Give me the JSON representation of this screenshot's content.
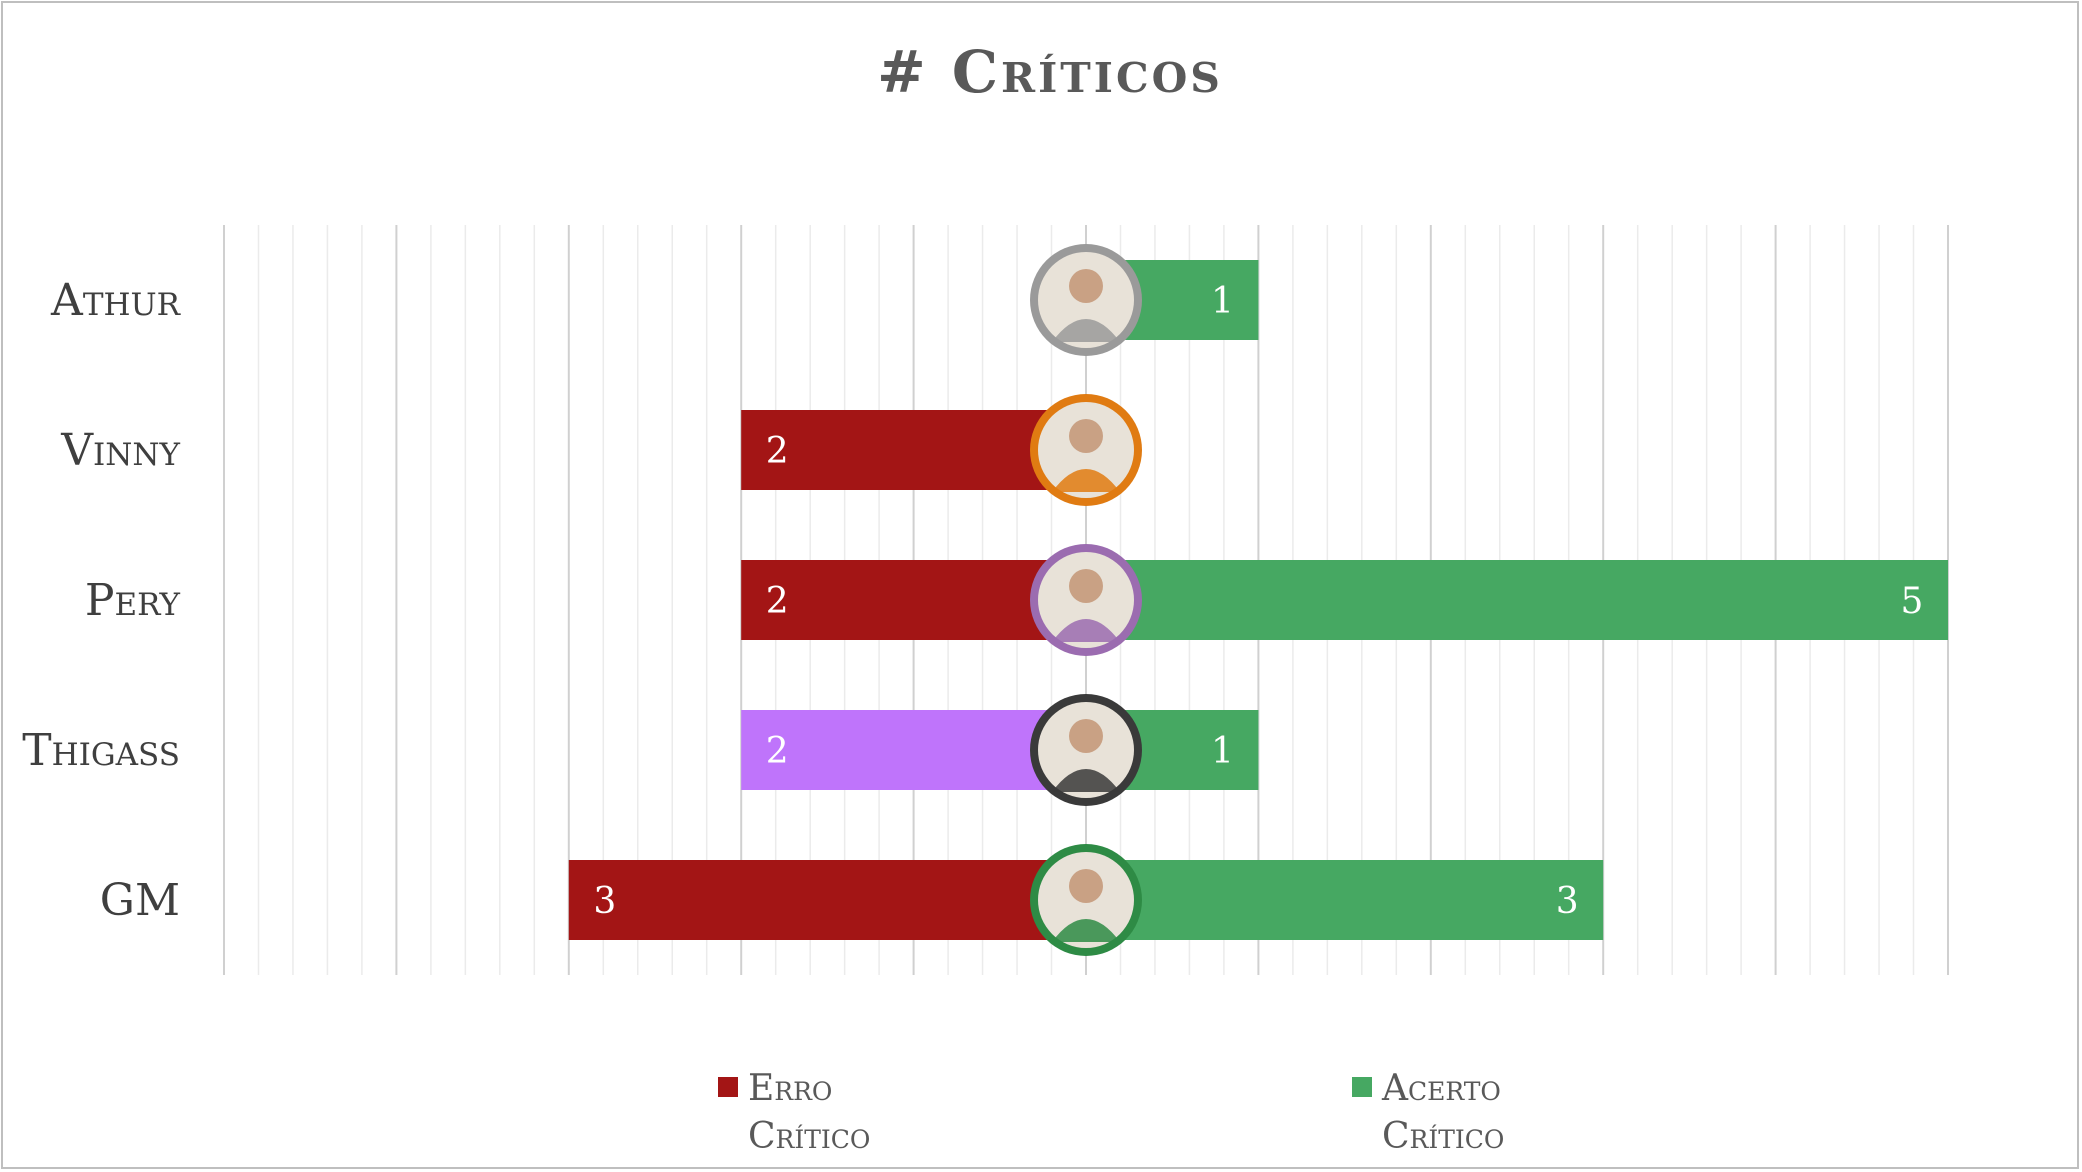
{
  "chart_data": {
    "type": "bar",
    "orientation": "horizontal",
    "diverging": true,
    "title": "# Críticos",
    "categories": [
      "Athur",
      "Vinny",
      "Pery",
      "Thigass",
      "GM"
    ],
    "series": [
      {
        "name": "Erro Crítico",
        "color": "#a31515",
        "direction": "left",
        "values": [
          0,
          2,
          2,
          2,
          3
        ]
      },
      {
        "name": "Acerto Crítico",
        "color": "#46a862",
        "direction": "right",
        "values": [
          1,
          0,
          5,
          1,
          3
        ]
      }
    ],
    "bar_color_overrides": [
      {
        "series": "Erro Crítico",
        "category": "Thigass",
        "color": "#bf74fb"
      }
    ],
    "avatar_ring_colors": {
      "Athur": "#9a9a9a",
      "Vinny": "#e07b12",
      "Pery": "#9b6cb0",
      "Thigass": "#3a3a3a",
      "GM": "#2e8b45"
    },
    "xlim": [
      -5,
      5
    ],
    "grid": true,
    "legend_position": "bottom",
    "legend": [
      {
        "series": "Erro Crítico",
        "line1": "Erro",
        "line2": "Crítico"
      },
      {
        "series": "Acerto Crítico",
        "line1": "Acerto",
        "line2": "Crítico"
      }
    ]
  }
}
